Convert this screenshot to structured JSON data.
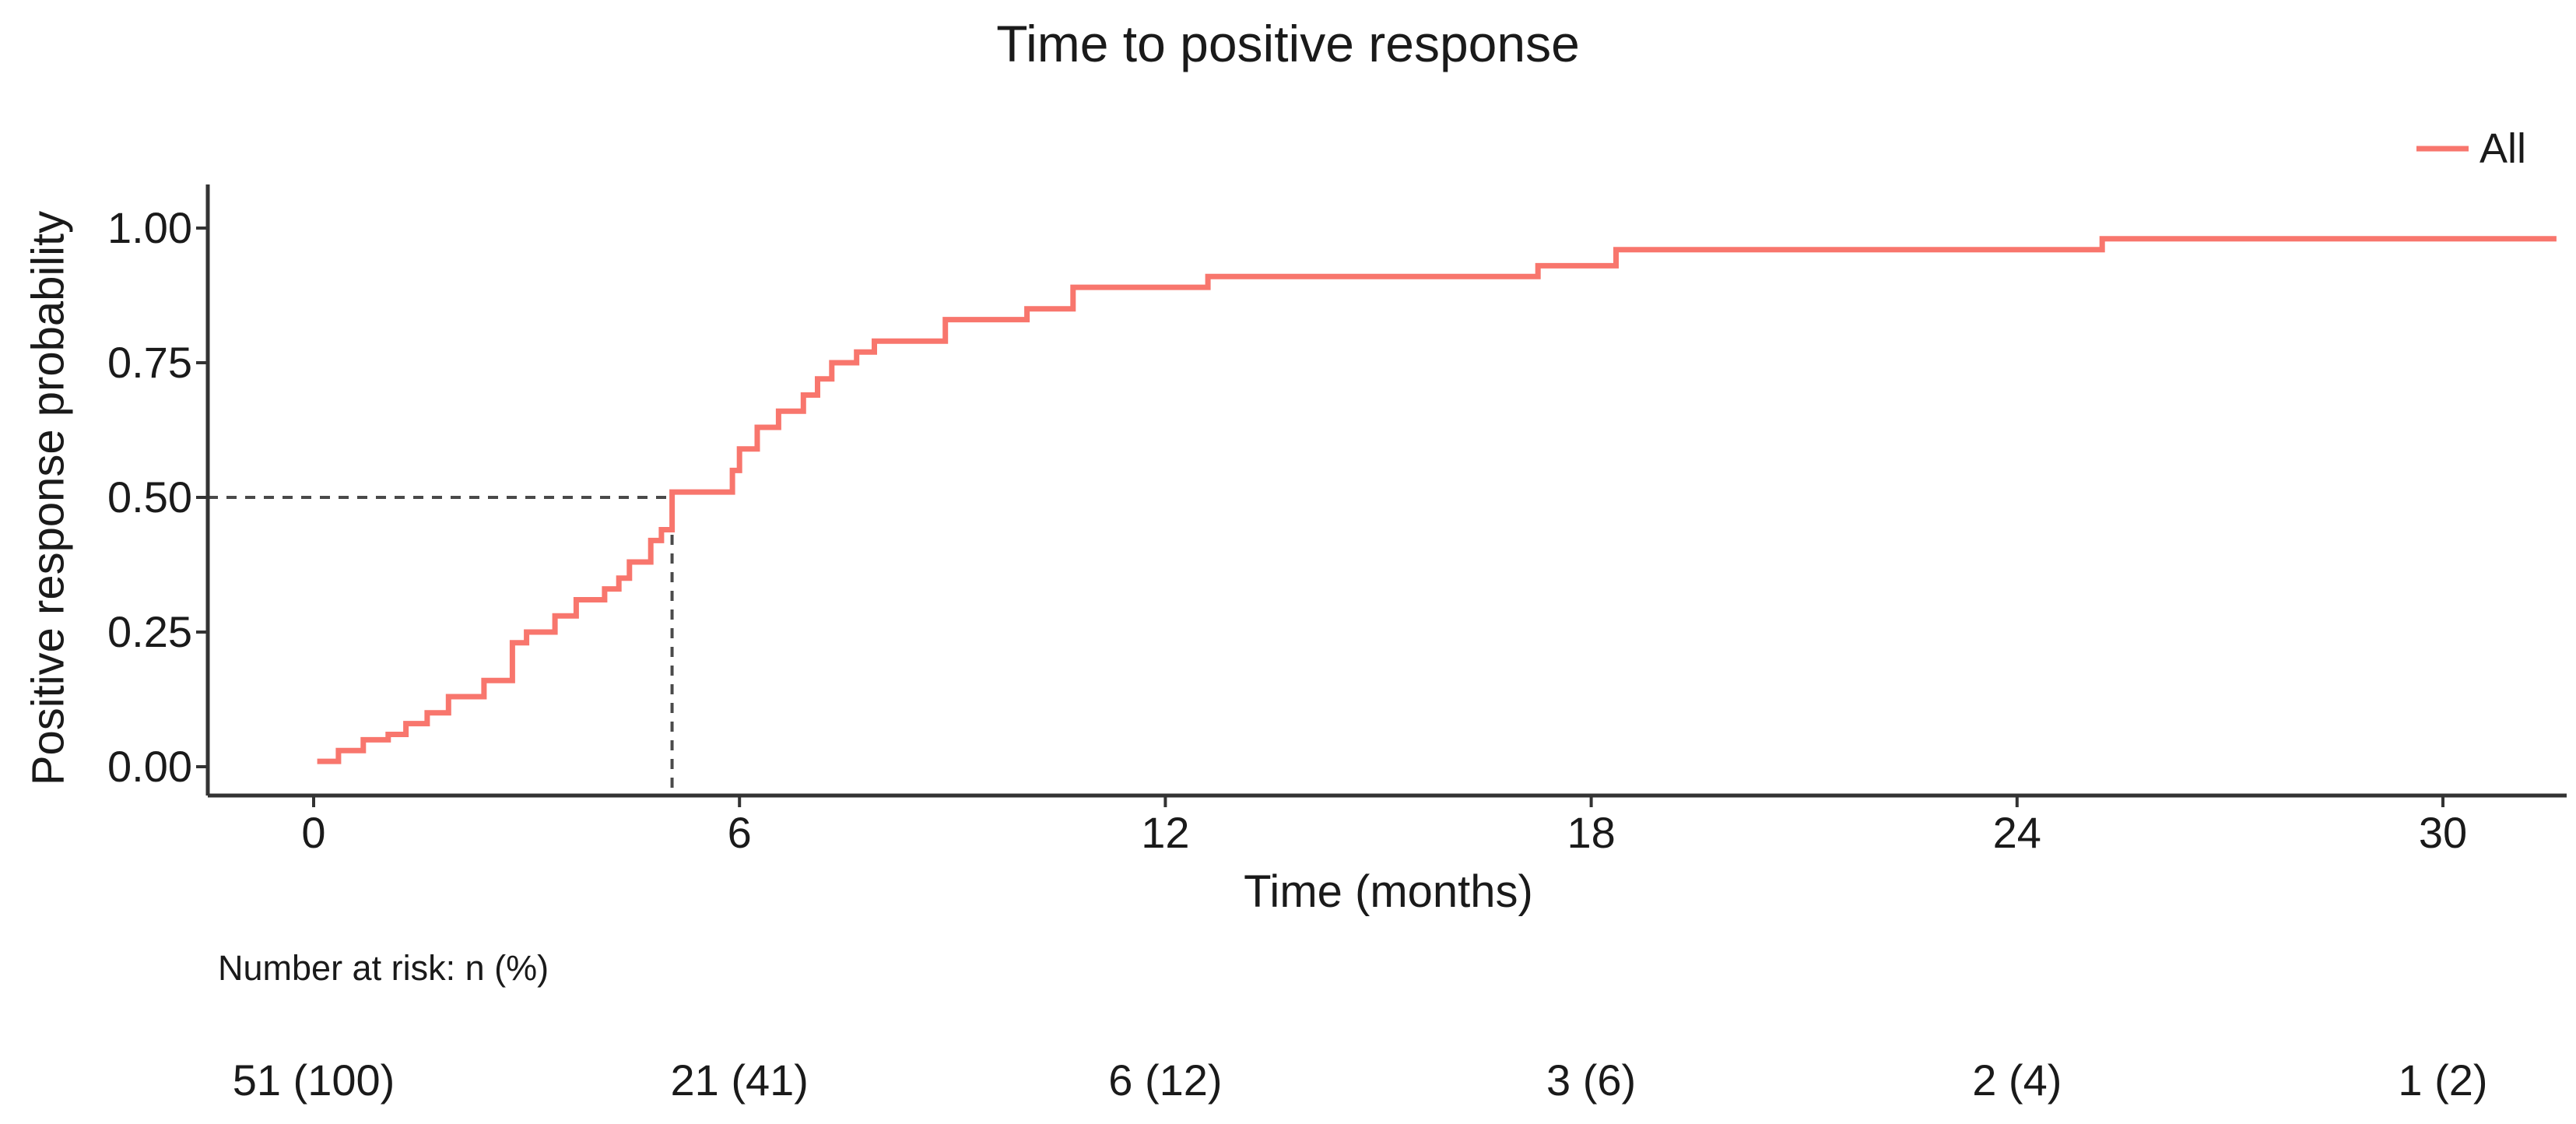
{
  "title": "Time to positive response",
  "legend": {
    "label": "All",
    "color": "#F8766D",
    "position": "top-right"
  },
  "risk_table": {
    "caption": "Number at risk: n (%)",
    "times": [
      0,
      6,
      12,
      18,
      24,
      30
    ],
    "values": [
      "51 (100)",
      "21 (41)",
      "6 (12)",
      "3 (6)",
      "2 (4)",
      "1 (2)"
    ]
  },
  "chart_data": {
    "type": "line",
    "subtype": "kaplan-meier-step-cumulative-incidence",
    "title": "Time to positive response",
    "xlabel": "Time (months)",
    "ylabel": "Positive response probability",
    "xlim": [
      -1.5,
      31.9
    ],
    "ylim": [
      -0.05,
      1.05
    ],
    "x_ticks": [
      0,
      6,
      12,
      18,
      24,
      30
    ],
    "x_tick_labels": [
      "0",
      "6",
      "12",
      "18",
      "24",
      "30"
    ],
    "y_ticks": [
      0.0,
      0.25,
      0.5,
      0.75,
      1.0
    ],
    "y_tick_labels": [
      "0.00",
      "0.25",
      "0.50",
      "0.75",
      "1.00"
    ],
    "grid": false,
    "legend_position": "top-right",
    "median_annotation": {
      "probability": 0.5,
      "time_months": 5.05,
      "style": "dashed"
    },
    "series": [
      {
        "name": "All",
        "color": "#F8766D",
        "end_time": 31.6,
        "steps": [
          [
            0.05,
            0.01
          ],
          [
            0.35,
            0.03
          ],
          [
            0.7,
            0.05
          ],
          [
            1.05,
            0.06
          ],
          [
            1.3,
            0.08
          ],
          [
            1.6,
            0.1
          ],
          [
            1.9,
            0.13
          ],
          [
            2.4,
            0.16
          ],
          [
            2.8,
            0.23
          ],
          [
            3.0,
            0.25
          ],
          [
            3.4,
            0.28
          ],
          [
            3.7,
            0.31
          ],
          [
            4.1,
            0.33
          ],
          [
            4.3,
            0.35
          ],
          [
            4.45,
            0.38
          ],
          [
            4.75,
            0.42
          ],
          [
            4.9,
            0.44
          ],
          [
            5.05,
            0.51
          ],
          [
            5.9,
            0.55
          ],
          [
            6.0,
            0.59
          ],
          [
            6.25,
            0.63
          ],
          [
            6.55,
            0.66
          ],
          [
            6.9,
            0.69
          ],
          [
            7.1,
            0.72
          ],
          [
            7.3,
            0.75
          ],
          [
            7.65,
            0.77
          ],
          [
            7.9,
            0.79
          ],
          [
            8.9,
            0.83
          ],
          [
            10.05,
            0.85
          ],
          [
            10.7,
            0.89
          ],
          [
            12.6,
            0.91
          ],
          [
            17.25,
            0.93
          ],
          [
            18.35,
            0.96
          ],
          [
            25.2,
            0.98
          ]
        ]
      }
    ],
    "colors": {
      "curve": "#F8766D",
      "dashed_reference": "#4a4a4a",
      "axis": "#333333",
      "text": "#1a1a1a"
    }
  }
}
